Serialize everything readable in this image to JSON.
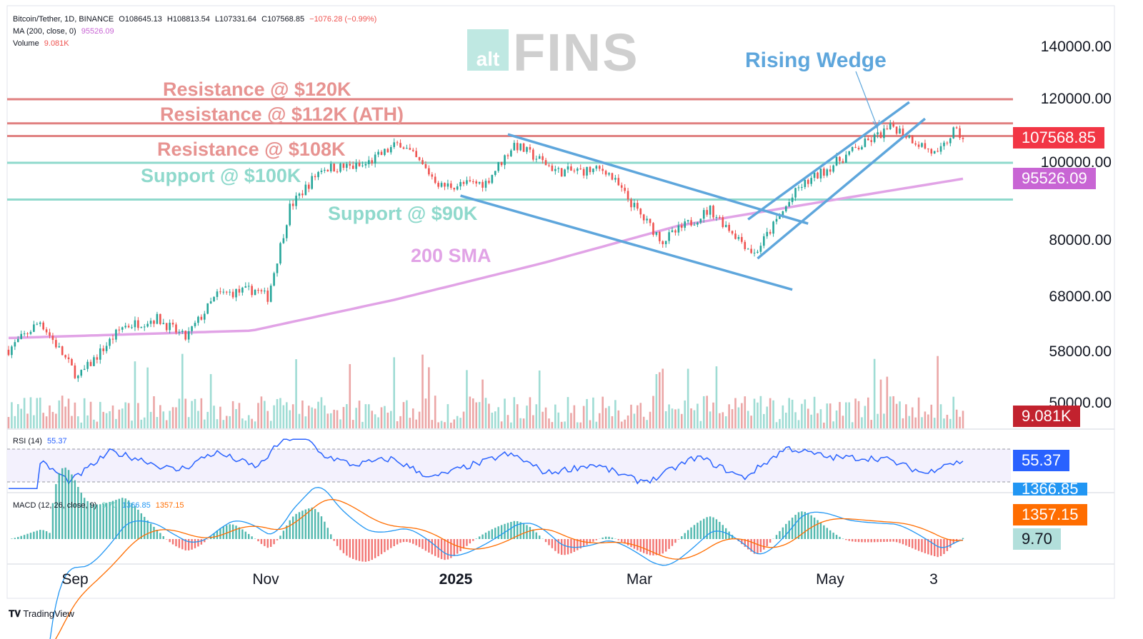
{
  "header": {
    "symbol": "Bitcoin/Tether, 1D, BINANCE",
    "open": "O108645.13",
    "high": "H108813.54",
    "low": "L107331.64",
    "close": "C107568.85",
    "change": "−1076.28 (−0.99%)",
    "ma_label": "MA (200, close, 0)",
    "ma_value": "95526.09",
    "volume_label": "Volume",
    "volume_value": "9.081K"
  },
  "rsi_header": {
    "label": "RSI (14)",
    "value": "55.37"
  },
  "macd_header": {
    "label": "MACD (12, 26, close, 9)",
    "hist": "9.70",
    "macd": "1366.85",
    "signal": "1357.15"
  },
  "watermark": {
    "small": "alt",
    "big": "FINS"
  },
  "badges": {
    "price": "107568.85",
    "ma": "95526.09",
    "volume": "9.081K",
    "rsi": "55.37",
    "macd_hidden": "1366.85",
    "signal": "1357.15",
    "hist": "9.70"
  },
  "y_axis_labels": [
    "140000.00",
    "120000.00",
    "100000.00",
    "80000.00",
    "68000.00",
    "58000.00",
    "50000.00"
  ],
  "x_axis_labels": [
    "Sep",
    "Nov",
    "2025",
    "Mar",
    "May",
    "3"
  ],
  "footer": {
    "brand": "TradingView"
  },
  "colors": {
    "resistance": "#e08080",
    "support": "#8fd9cc",
    "sma": "#e1a3e6",
    "trendline": "#5ea6dc",
    "up_candle": "#26a69a",
    "down_candle": "#ef5350",
    "rsi_line": "#2962ff",
    "macd_line": "#2196f3",
    "signal_line": "#ff6d00"
  },
  "chart_data": {
    "type": "candlestick",
    "title": "Bitcoin/Tether, 1D, BINANCE",
    "y_scale": "log",
    "ylim": [
      48000,
      150000
    ],
    "annotations": [
      {
        "label": "Resistance @ $120K",
        "price": 120000
      },
      {
        "label": "Resistance @ $112K (ATH)",
        "price": 112000
      },
      {
        "label": "Resistance @ $108K",
        "price": 108000
      },
      {
        "label": "Support @ $100K",
        "price": 100000
      },
      {
        "label": "Support @ $90K",
        "price": 90000
      },
      {
        "label": "200 SMA"
      },
      {
        "label": "Rising Wedge"
      }
    ],
    "levels": {
      "resistance": [
        120000,
        112000,
        108000
      ],
      "support": [
        100000,
        90000
      ]
    },
    "close_approx": [
      {
        "date": "2024-08-15",
        "close": 58500
      },
      {
        "date": "2024-08-25",
        "close": 63500
      },
      {
        "date": "2024-09-06",
        "close": 54000
      },
      {
        "date": "2024-09-20",
        "close": 62500
      },
      {
        "date": "2024-10-01",
        "close": 64000
      },
      {
        "date": "2024-10-10",
        "close": 60500
      },
      {
        "date": "2024-10-20",
        "close": 68500
      },
      {
        "date": "2024-11-01",
        "close": 69500
      },
      {
        "date": "2024-11-05",
        "close": 68000
      },
      {
        "date": "2024-11-12",
        "close": 88000
      },
      {
        "date": "2024-11-22",
        "close": 98500
      },
      {
        "date": "2024-12-05",
        "close": 99000
      },
      {
        "date": "2024-12-17",
        "close": 106000
      },
      {
        "date": "2024-12-30",
        "close": 93500
      },
      {
        "date": "2025-01-13",
        "close": 94500
      },
      {
        "date": "2025-01-22",
        "close": 105500
      },
      {
        "date": "2025-02-05",
        "close": 97500
      },
      {
        "date": "2025-02-20",
        "close": 98000
      },
      {
        "date": "2025-03-03",
        "close": 86000
      },
      {
        "date": "2025-03-10",
        "close": 80000
      },
      {
        "date": "2025-03-25",
        "close": 87500
      },
      {
        "date": "2025-04-08",
        "close": 77000
      },
      {
        "date": "2025-04-22",
        "close": 93000
      },
      {
        "date": "2025-05-10",
        "close": 104000
      },
      {
        "date": "2025-05-22",
        "close": 111000
      },
      {
        "date": "2025-06-05",
        "close": 102000
      },
      {
        "date": "2025-06-10",
        "close": 109500
      },
      {
        "date": "2025-06-13",
        "close": 107568.85
      }
    ],
    "sma200_approx": [
      {
        "date": "2024-08-15",
        "value": 60500
      },
      {
        "date": "2024-10-31",
        "value": 61800
      },
      {
        "date": "2024-12-15",
        "value": 67500
      },
      {
        "date": "2025-01-31",
        "value": 75000
      },
      {
        "date": "2025-03-15",
        "value": 83500
      },
      {
        "date": "2025-04-30",
        "value": 89500
      },
      {
        "date": "2025-06-13",
        "value": 95526.09
      }
    ],
    "rsi": {
      "period": 14,
      "last": 55.37,
      "bands": [
        30,
        70
      ]
    },
    "macd": {
      "fast": 12,
      "slow": 26,
      "signal": 9,
      "macd": 1366.85,
      "signal_value": 1357.15,
      "hist": 9.7
    },
    "volume_last": "9.081K"
  }
}
